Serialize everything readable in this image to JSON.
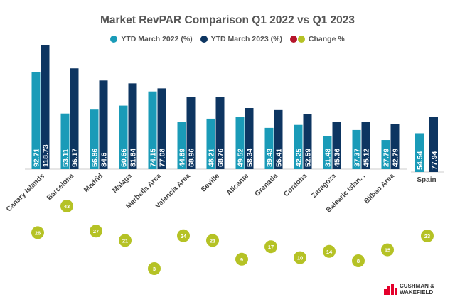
{
  "chart_data": {
    "type": "bar",
    "title": "Market RevPAR Comparison Q1 2022 vs Q1 2023",
    "categories": [
      "Canary Islands",
      "Barcelona",
      "Madrid",
      "Malaga",
      "Marbella Area",
      "Valencia Area",
      "Seville",
      "Alicante",
      "Granada",
      "Cordoba",
      "Zaragoza",
      "Balearic Islan...",
      "Bilbao Area",
      "Spain"
    ],
    "series": [
      {
        "name": "YTD March 2022 (%)",
        "color": "#1a9bb8",
        "values": [
          92.71,
          53.11,
          56.86,
          60.66,
          74.15,
          44.89,
          48.21,
          49.52,
          39.43,
          42.25,
          31.48,
          37.37,
          27.79,
          54.54
        ],
        "labels": [
          "92.71",
          "53.11",
          "56.86",
          "60.66",
          "74.15",
          "44.89",
          "48.21",
          "49.52",
          "39.43",
          "42.25",
          "31.48",
          "37.37",
          "27.79",
          "54.54"
        ]
      },
      {
        "name": "YTD March 2023 (%)",
        "color": "#0d3561",
        "values": [
          118.73,
          96.17,
          84.6,
          81.84,
          77.08,
          68.96,
          68.76,
          58.34,
          56.41,
          52.59,
          45.36,
          45.12,
          42.79,
          77.94
        ],
        "labels": [
          "118.73",
          "96.17",
          "84.6",
          "81.84",
          "77.08",
          "68.96",
          "68.76",
          "58.34",
          "56.41",
          "52.59",
          "45.36",
          "45.12",
          "42.79",
          "77.94"
        ]
      },
      {
        "name": "Change %",
        "type": "bubble",
        "colors": [
          "#b5152b",
          "#b5c225"
        ],
        "values": [
          26,
          43,
          27,
          21,
          3,
          24,
          21,
          9,
          17,
          10,
          14,
          8,
          15,
          23
        ],
        "labels": [
          "26",
          "43",
          "27",
          "21",
          "3",
          "24",
          "21",
          "9",
          "17",
          "10",
          "14",
          "8",
          "15",
          "23"
        ]
      }
    ],
    "legend": "top",
    "grid": false
  },
  "logo": {
    "text_line1": "CUSHMAN &",
    "text_line2": "WAKEFIELD",
    "color": "#e4002b"
  }
}
